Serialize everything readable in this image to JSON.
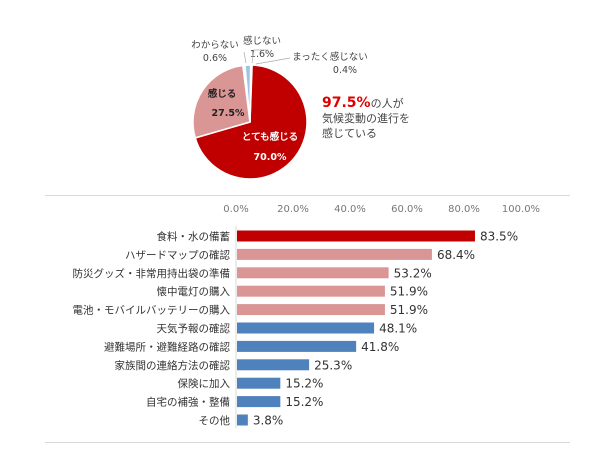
{
  "chart_data": [
    {
      "type": "pie",
      "slices": [
        {
          "label": "とても感じる",
          "value": 70.0,
          "display": "70.0%",
          "color": "#c00000"
        },
        {
          "label": "感じる",
          "value": 27.5,
          "display": "27.5%",
          "color": "#d99694"
        },
        {
          "label": "わからない",
          "value": 0.6,
          "display": "0.6%",
          "color": "#f2f2f2"
        },
        {
          "label": "感じない",
          "value": 1.6,
          "display": "1.6%",
          "color": "#9dc3e6"
        },
        {
          "label": "まったく感じない",
          "value": 0.4,
          "display": "0.4%",
          "color": "#4f81bd"
        }
      ],
      "annotation": {
        "highlight": "97.5%",
        "line1": "の人が",
        "line2": "気候変動の進行を",
        "line3": "感じている"
      }
    },
    {
      "type": "bar",
      "orientation": "horizontal",
      "xlim": [
        0,
        100
      ],
      "ticks": [
        "0.0%",
        "20.0%",
        "40.0%",
        "60.0%",
        "80.0%",
        "100.0%"
      ],
      "categories": [
        "食料・水の備蓄",
        "ハザードマップの確認",
        "防災グッズ・非常用持出袋の準備",
        "懐中電灯の購入",
        "電池・モバイルバッテリーの購入",
        "天気予報の確認",
        "避難場所・避難経路の確認",
        "家族間の連絡方法の確認",
        "保険に加入",
        "自宅の補強・整備",
        "その他"
      ],
      "values": [
        83.5,
        68.4,
        53.2,
        51.9,
        51.9,
        48.1,
        41.8,
        25.3,
        15.2,
        15.2,
        3.8
      ],
      "labels": [
        "83.5%",
        "68.4%",
        "53.2%",
        "51.9%",
        "51.9%",
        "48.1%",
        "41.8%",
        "25.3%",
        "15.2%",
        "15.2%",
        "3.8%"
      ],
      "colors": [
        "#c00000",
        "#d99694",
        "#d99694",
        "#d99694",
        "#d99694",
        "#4f81bd",
        "#4f81bd",
        "#4f81bd",
        "#4f81bd",
        "#4f81bd",
        "#4f81bd"
      ]
    }
  ]
}
